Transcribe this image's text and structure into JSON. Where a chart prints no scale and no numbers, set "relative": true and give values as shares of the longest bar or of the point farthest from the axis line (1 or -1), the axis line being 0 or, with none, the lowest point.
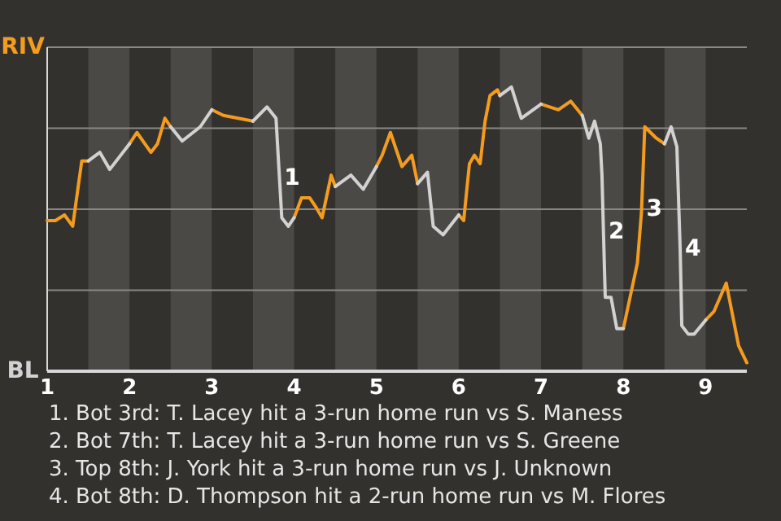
{
  "chart_data": {
    "type": "line",
    "relative": true,
    "x": [
      1.0,
      1.1,
      1.21,
      1.31,
      1.42,
      1.5,
      1.64,
      1.76,
      2.0,
      2.09,
      2.26,
      2.34,
      2.43,
      2.5,
      2.64,
      2.86,
      3.0,
      3.14,
      3.5,
      3.67,
      3.78,
      3.85,
      3.93,
      4.0,
      4.09,
      4.19,
      4.26,
      4.34,
      4.45,
      4.5,
      4.69,
      4.84,
      5.0,
      5.07,
      5.17,
      5.31,
      5.43,
      5.5,
      5.62,
      5.69,
      5.81,
      6.0,
      6.06,
      6.13,
      6.19,
      6.26,
      6.32,
      6.38,
      6.47,
      6.5,
      6.64,
      6.76,
      7.0,
      7.21,
      7.36,
      7.5,
      7.58,
      7.65,
      7.72,
      7.74,
      7.76,
      7.78,
      7.85,
      7.92,
      8.0,
      8.17,
      8.22,
      8.26,
      8.4,
      8.5,
      8.58,
      8.65,
      8.69,
      8.71,
      8.79,
      8.86,
      9.0,
      9.1,
      9.25,
      9.4,
      9.5
    ],
    "series": [
      {
        "color": "#f39c1f",
        "values": [
          0.53,
          0.53,
          0.55,
          0.51,
          0.74,
          0.74,
          null,
          null,
          0.8,
          0.84,
          0.77,
          0.8,
          0.89,
          0.86,
          null,
          null,
          0.92,
          0.9,
          0.88,
          null,
          null,
          null,
          null,
          0.54,
          0.61,
          0.61,
          0.58,
          0.54,
          0.69,
          0.65,
          null,
          null,
          0.72,
          0.76,
          0.84,
          0.72,
          0.76,
          0.66,
          null,
          null,
          null,
          0.55,
          0.53,
          0.73,
          0.76,
          0.73,
          0.88,
          0.97,
          0.99,
          0.97,
          null,
          null,
          0.94,
          0.92,
          0.95,
          0.9,
          null,
          null,
          null,
          null,
          null,
          null,
          null,
          null,
          0.15,
          0.38,
          0.56,
          0.86,
          0.82,
          0.8,
          null,
          null,
          null,
          null,
          null,
          null,
          0.18,
          0.21,
          0.31,
          0.09,
          0.03
        ]
      },
      {
        "color": "#d2d2d2",
        "values": [
          null,
          null,
          null,
          null,
          null,
          0.74,
          0.77,
          0.71,
          0.8,
          null,
          null,
          null,
          null,
          0.86,
          0.81,
          0.86,
          0.92,
          null,
          0.88,
          0.93,
          0.89,
          0.54,
          0.51,
          0.54,
          null,
          null,
          null,
          null,
          null,
          0.65,
          0.69,
          0.64,
          0.72,
          null,
          null,
          null,
          null,
          0.66,
          0.7,
          0.51,
          0.48,
          0.55,
          null,
          null,
          null,
          null,
          null,
          null,
          null,
          0.97,
          1.0,
          0.89,
          0.94,
          null,
          null,
          0.9,
          0.82,
          0.88,
          0.8,
          0.69,
          0.47,
          0.26,
          0.26,
          0.15,
          0.15,
          null,
          null,
          null,
          null,
          0.8,
          0.86,
          0.79,
          0.43,
          0.16,
          0.13,
          0.13,
          0.18,
          null,
          null,
          null,
          null
        ]
      }
    ],
    "xlim": [
      1,
      9.5
    ],
    "xticks": [
      1,
      2,
      3,
      4,
      5,
      6,
      7,
      8,
      9
    ],
    "grid": "y",
    "marker": "none",
    "line_style": "solid",
    "bands": [
      {
        "axis": "x",
        "from": 1.5,
        "to": 2,
        "color": "#4b4946"
      },
      {
        "axis": "x",
        "from": 2.5,
        "to": 3,
        "color": "#4b4946"
      },
      {
        "axis": "x",
        "from": 3.5,
        "to": 4,
        "color": "#4b4946"
      },
      {
        "axis": "x",
        "from": 4.5,
        "to": 5,
        "color": "#4b4946"
      },
      {
        "axis": "x",
        "from": 5.5,
        "to": 6,
        "color": "#4b4946"
      },
      {
        "axis": "x",
        "from": 6.5,
        "to": 7,
        "color": "#4b4946"
      },
      {
        "axis": "x",
        "from": 7.5,
        "to": 8,
        "color": "#4b4946"
      },
      {
        "axis": "x",
        "from": 8.5,
        "to": 9,
        "color": "#4b4946"
      }
    ],
    "annotations": [
      "RIV",
      "BL",
      {
        "text": "1",
        "x": 3.82,
        "y": 0.68
      },
      {
        "text": "2",
        "x": 7.76,
        "y": 0.49
      },
      {
        "text": "3",
        "x": 8.22,
        "y": 0.57
      },
      {
        "text": "4",
        "x": 8.69,
        "y": 0.43
      },
      "1. Bot 3rd: T. Lacey hit a 3-run home run vs S. Maness",
      "2. Bot 7th: T. Lacey hit a 3-run home run vs S. Greene",
      "3. Top 8th: J. York hit a 3-run home run vs J. Unknown",
      "4. Bot 8th: D. Thompson hit a 2-run home run vs M. Flores"
    ]
  }
}
